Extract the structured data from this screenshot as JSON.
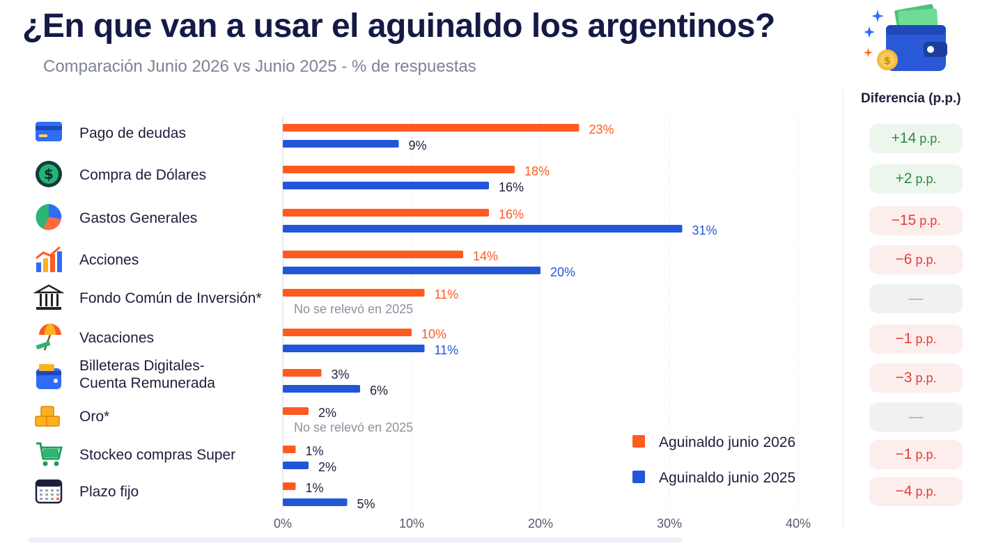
{
  "header": {
    "title": "¿En que van a usar el aguinaldo los argentinos?",
    "subtitle": "Comparación Junio 2026 vs Junio 2025 - % de respuestas"
  },
  "colors": {
    "series_2026": "#ff5a1f",
    "series_2025": "#2256d9",
    "title": "#141a45"
  },
  "chart_data": {
    "type": "bar",
    "orientation": "horizontal",
    "categories": [
      "Pago de deudas",
      "Compra de Dólares",
      "Gastos Generales",
      "Acciones",
      "Fondo Común de Inversión*",
      "Vacaciones",
      "Billeteras Digitales-\nCuenta Remunerada",
      "Oro*",
      "Stockeo compras Super",
      "Plazo fijo"
    ],
    "category_icons": [
      "credit-card-icon",
      "dollar-coin-icon",
      "pie-chart-icon",
      "rising-bars-icon",
      "bank-building-icon",
      "beach-umbrella-icon",
      "wallet-icon",
      "gold-bars-icon",
      "shopping-cart-icon",
      "calendar-icon"
    ],
    "series": [
      {
        "name": "Aguinaldo junio 2026",
        "color": "#ff5a1f",
        "values": [
          23,
          18,
          16,
          14,
          11,
          10,
          3,
          2,
          1,
          1
        ]
      },
      {
        "name": "Aguinaldo junio 2025",
        "color": "#2256d9",
        "values": [
          9,
          16,
          31,
          20,
          null,
          11,
          6,
          null,
          2,
          5
        ]
      }
    ],
    "value_labels_2026": [
      "23%",
      "18%",
      "16%",
      "14%",
      "11%",
      "10%",
      "3%",
      "2%",
      "1%",
      "1%"
    ],
    "value_labels_2025": [
      "9%",
      "16%",
      "31%",
      "20%",
      "",
      "11%",
      "6%",
      "",
      "2%",
      "5%"
    ],
    "missing_note": "No se relevó en 2025",
    "x_ticks": [
      0,
      10,
      20,
      30,
      40
    ],
    "x_tick_labels": [
      "0%",
      "10%",
      "20%",
      "30%",
      "40%"
    ],
    "legend_position": "bottom-right",
    "gridlines": true
  },
  "difference": {
    "header": "Diferencia (p.p.)",
    "unit": "p.p.",
    "items": [
      {
        "value": "+14",
        "kind": "pos"
      },
      {
        "value": "+2",
        "kind": "pos"
      },
      {
        "value": "−15",
        "kind": "neg"
      },
      {
        "value": "−6",
        "kind": "neg"
      },
      {
        "value": "—",
        "kind": "na"
      },
      {
        "value": "−1",
        "kind": "neg"
      },
      {
        "value": "−3",
        "kind": "neg"
      },
      {
        "value": "—",
        "kind": "na"
      },
      {
        "value": "−1",
        "kind": "neg"
      },
      {
        "value": "−4",
        "kind": "neg"
      }
    ]
  }
}
